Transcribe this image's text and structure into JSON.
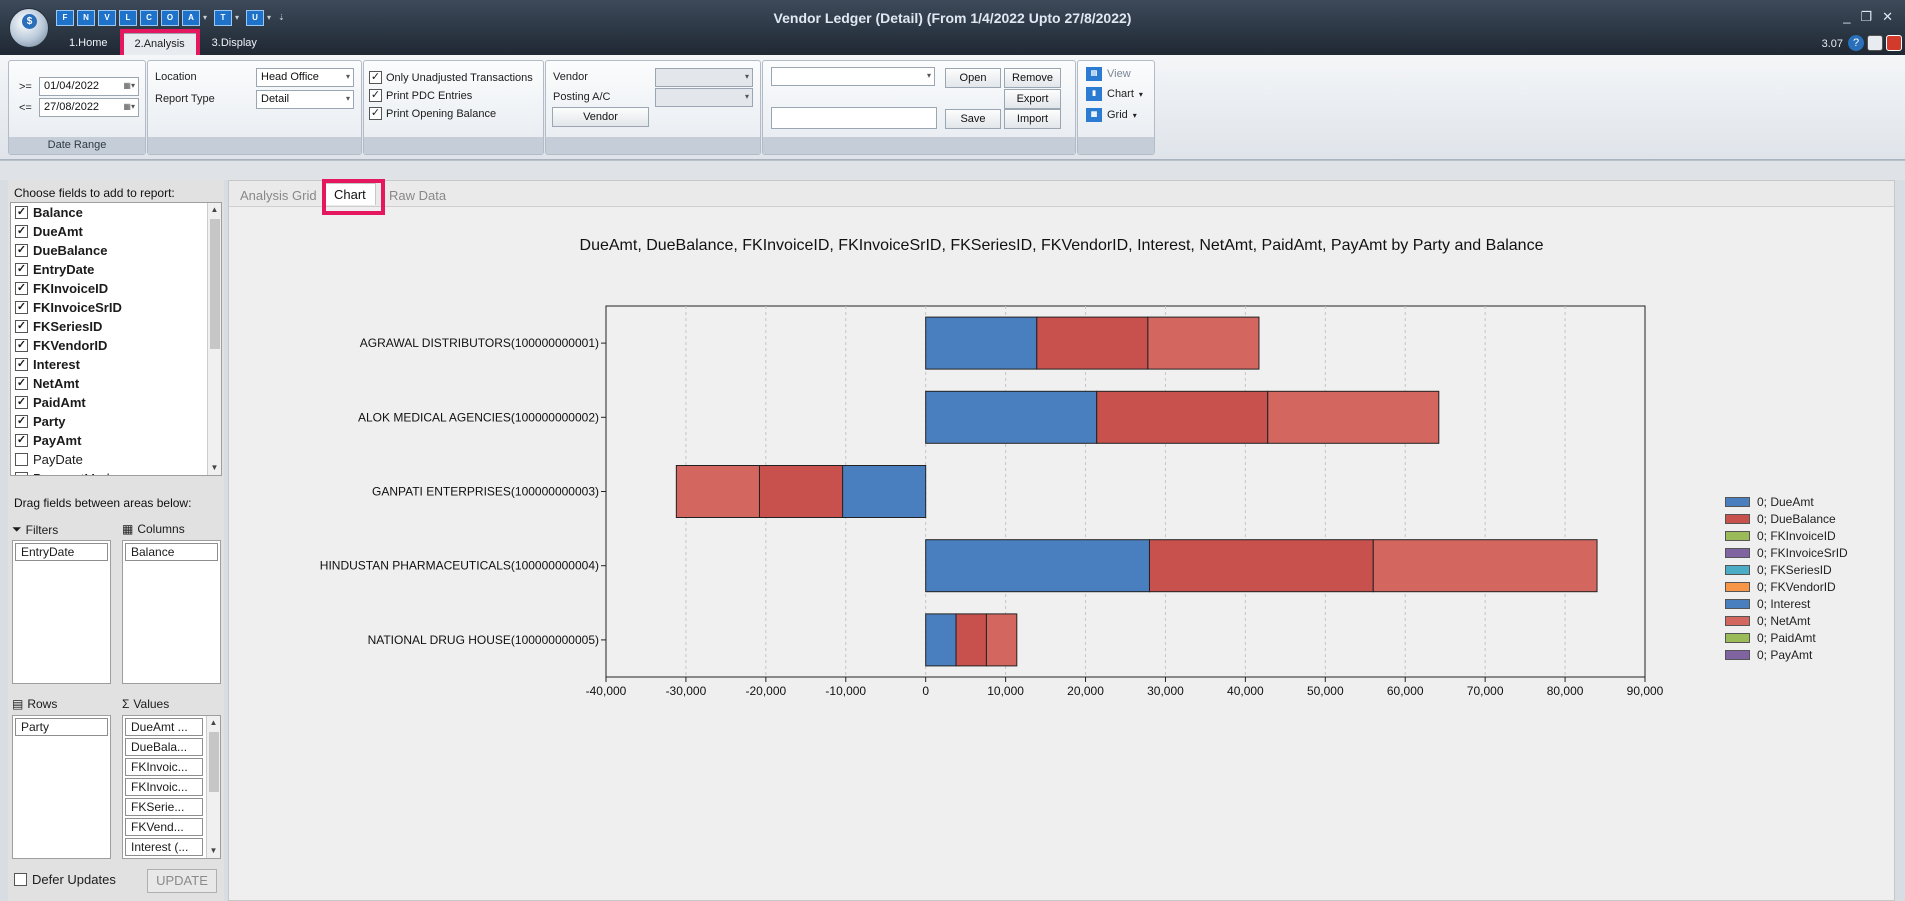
{
  "titlebar": {
    "title": "Vendor Ledger (Detail)  (From 1/4/2022 Upto 27/8/2022)",
    "version": "3.07",
    "qat_buttons": [
      "F",
      "N",
      "V",
      "L",
      "C",
      "O",
      "A",
      "T",
      "U"
    ],
    "window_controls": {
      "minimize": "_",
      "restore": "❐",
      "close": "✕"
    }
  },
  "main_tabs": [
    "1.Home",
    "2.Analysis",
    "3.Display"
  ],
  "ribbon": {
    "date_from_label": ">=",
    "date_from": "01/04/2022",
    "date_to_label": "<=",
    "date_to": "27/08/2022",
    "date_range_caption": "Date Range",
    "location_label": "Location",
    "location_value": "Head Office",
    "report_type_label": "Report Type",
    "report_type_value": "Detail",
    "only_unadjusted": "Only Unadjusted Transactions",
    "print_pdc": "Print PDC Entries",
    "print_opening": "Print Opening Balance",
    "vendor_label": "Vendor",
    "posting_label": "Posting A/C",
    "vendor_button": "Vendor",
    "open_button": "Open",
    "remove_button": "Remove",
    "export_button": "Export",
    "save_button": "Save",
    "import_button": "Import",
    "view_label": "View",
    "chart_label": "Chart",
    "grid_label": "Grid"
  },
  "left_panel": {
    "choose_fields_label": "Choose fields to add to report:",
    "fields": [
      {
        "name": "Balance",
        "checked": true
      },
      {
        "name": "DueAmt",
        "checked": true
      },
      {
        "name": "DueBalance",
        "checked": true
      },
      {
        "name": "EntryDate",
        "checked": true
      },
      {
        "name": "FKInvoiceID",
        "checked": true
      },
      {
        "name": "FKInvoiceSrID",
        "checked": true
      },
      {
        "name": "FKSeriesID",
        "checked": true
      },
      {
        "name": "FKVendorID",
        "checked": true
      },
      {
        "name": "Interest",
        "checked": true
      },
      {
        "name": "NetAmt",
        "checked": true
      },
      {
        "name": "PaidAmt",
        "checked": true
      },
      {
        "name": "Party",
        "checked": true
      },
      {
        "name": "PayAmt",
        "checked": true
      },
      {
        "name": "PayDate",
        "checked": false
      },
      {
        "name": "PaymentMode",
        "checked": false
      }
    ],
    "drag_label": "Drag fields between areas below:",
    "filters_label": "Filters",
    "filters": [
      "EntryDate"
    ],
    "columns_label": "Columns",
    "columns": [
      "Balance"
    ],
    "rows_label": "Rows",
    "rows": [
      "Party"
    ],
    "values_label": "Values",
    "values": [
      "DueAmt ...",
      "DueBala...",
      "FKInvoic...",
      "FKInvoic...",
      "FKSerie...",
      "FKVend...",
      "Interest (..."
    ],
    "defer_label": "Defer Updates",
    "update_button": "UPDATE"
  },
  "content_tabs": [
    "Analysis Grid",
    "Chart",
    "Raw Data"
  ],
  "chart_data": {
    "type": "bar",
    "orientation": "horizontal",
    "stacked": true,
    "title": "DueAmt, DueBalance, FKInvoiceID, FKInvoiceSrID, FKSeriesID, FKVendorID, Interest, NetAmt, PaidAmt, PayAmt by Party and Balance",
    "categories": [
      "AGRAWAL DISTRIBUTORS(100000000001)",
      "ALOK MEDICAL AGENCIES(100000000002)",
      "GANPATI ENTERPRISES(100000000003)",
      "HINDUSTAN PHARMACEUTICALS(100000000004)",
      "NATIONAL DRUG HOUSE(100000000005)"
    ],
    "series": [
      {
        "name": "0; DueAmt",
        "color": "#4a7fbf",
        "values": [
          13900,
          21400,
          -10400,
          28000,
          3800
        ]
      },
      {
        "name": "0; DueBalance",
        "color": "#c8504d",
        "values": [
          13900,
          21400,
          -10400,
          28000,
          3800
        ]
      },
      {
        "name": "0; FKInvoiceID",
        "color": "#9bbb59",
        "values": [
          0,
          0,
          0,
          0,
          0
        ]
      },
      {
        "name": "0; FKInvoiceSrID",
        "color": "#8064a2",
        "values": [
          0,
          0,
          0,
          0,
          0
        ]
      },
      {
        "name": "0; FKSeriesID",
        "color": "#4bacc6",
        "values": [
          0,
          0,
          0,
          0,
          0
        ]
      },
      {
        "name": "0; FKVendorID",
        "color": "#f79646",
        "values": [
          0,
          0,
          0,
          0,
          0
        ]
      },
      {
        "name": "0; Interest",
        "color": "#4a7fbf",
        "values": [
          0,
          0,
          0,
          0,
          0
        ]
      },
      {
        "name": "0; NetAmt",
        "color": "#d3675f",
        "values": [
          13900,
          21400,
          -10400,
          28000,
          3800
        ]
      },
      {
        "name": "0; PaidAmt",
        "color": "#9bbb59",
        "values": [
          0,
          0,
          0,
          0,
          0
        ]
      },
      {
        "name": "0; PayAmt",
        "color": "#8064a2",
        "values": [
          0,
          0,
          0,
          0,
          0
        ]
      }
    ],
    "xlim": [
      -40000,
      90000
    ],
    "xticks": [
      "-40,000",
      "-30,000",
      "-20,000",
      "-10,000",
      "0",
      "10,000",
      "20,000",
      "30,000",
      "40,000",
      "50,000",
      "60,000",
      "70,000",
      "80,000",
      "90,000"
    ],
    "grid": "vertical-dashed",
    "legend": "right"
  },
  "colors": {
    "highlight": "#e5185f",
    "titlebar": "#2a3542"
  }
}
